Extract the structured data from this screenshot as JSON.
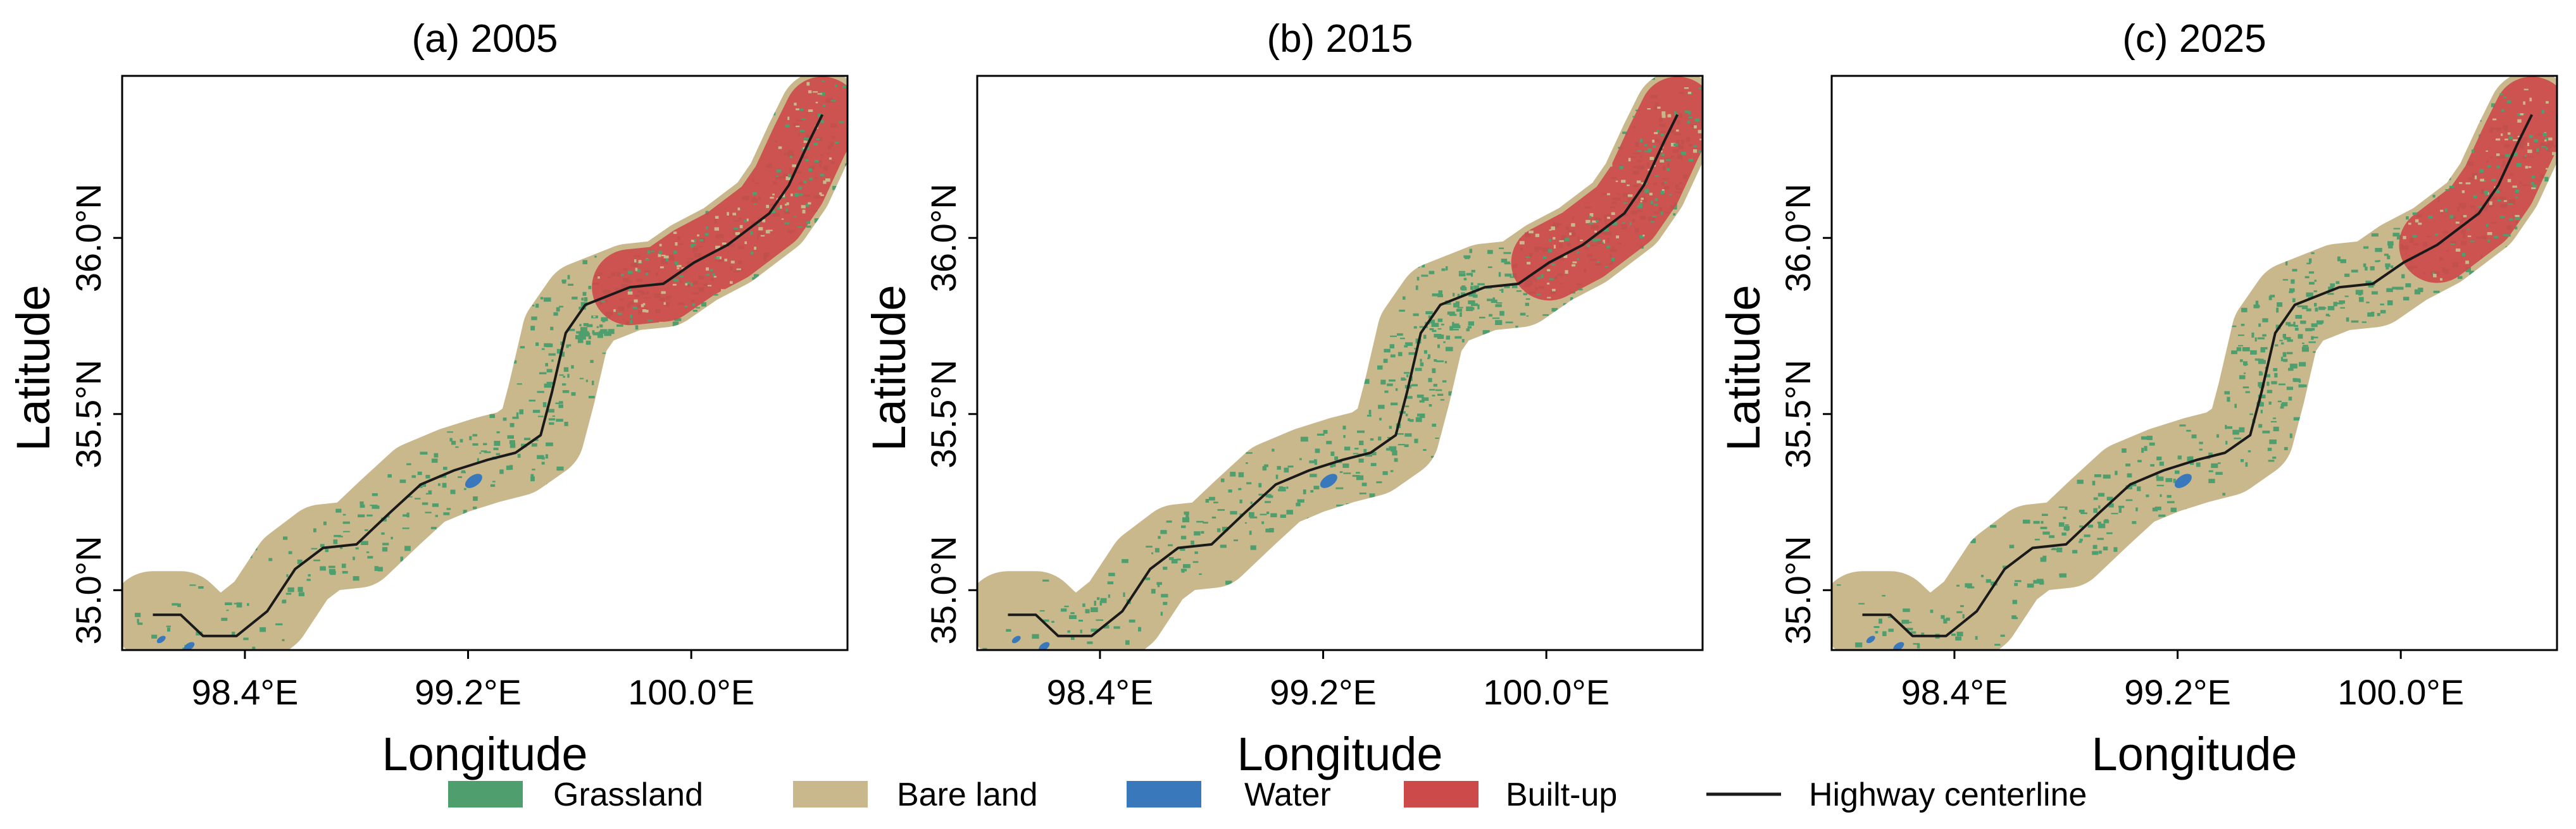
{
  "figure": {
    "xlabel": "Longitude",
    "ylabel": "Latitude",
    "x_ticks": [
      {
        "value": 98.4,
        "label": "98.4°E"
      },
      {
        "value": 99.2,
        "label": "99.2°E"
      },
      {
        "value": 100.0,
        "label": "100.0°E"
      }
    ],
    "y_ticks": [
      {
        "value": 35.0,
        "label": "35.0°N"
      },
      {
        "value": 35.5,
        "label": "35.5°N"
      },
      {
        "value": 36.0,
        "label": "36.0°N"
      }
    ],
    "xlim": [
      97.96,
      100.56
    ],
    "ylim": [
      34.83,
      36.46
    ]
  },
  "panels": [
    {
      "title": "(a) 2005",
      "builtup_extent": 0.32,
      "grassland_density": 0.42
    },
    {
      "title": "(b) 2015",
      "builtup_extent": 0.22,
      "grassland_density": 0.55
    },
    {
      "title": "(c) 2025",
      "builtup_extent": 0.18,
      "grassland_density": 0.5
    }
  ],
  "legend": {
    "placement": "bottom",
    "items": [
      {
        "label": "Grassland",
        "color": "#4e9e6e",
        "kind": "patch"
      },
      {
        "label": "Bare land",
        "color": "#c9b88c",
        "kind": "patch"
      },
      {
        "label": "Water",
        "color": "#3a78bc",
        "kind": "patch"
      },
      {
        "label": "Built-up",
        "color": "#cc4a4a",
        "kind": "patch"
      },
      {
        "label": "Highway centerline",
        "color": "#1a1a1a",
        "kind": "line"
      }
    ]
  },
  "highway_route": [
    [
      98.07,
      34.93
    ],
    [
      98.17,
      34.93
    ],
    [
      98.25,
      34.87
    ],
    [
      98.37,
      34.87
    ],
    [
      98.48,
      34.94
    ],
    [
      98.58,
      35.06
    ],
    [
      98.68,
      35.12
    ],
    [
      98.8,
      35.13
    ],
    [
      98.92,
      35.22
    ],
    [
      99.03,
      35.3
    ],
    [
      99.15,
      35.34
    ],
    [
      99.27,
      35.37
    ],
    [
      99.37,
      35.39
    ],
    [
      99.46,
      35.44
    ],
    [
      99.5,
      35.56
    ],
    [
      99.55,
      35.73
    ],
    [
      99.62,
      35.81
    ],
    [
      99.78,
      35.86
    ],
    [
      99.9,
      35.87
    ],
    [
      100.01,
      35.93
    ],
    [
      100.13,
      35.98
    ],
    [
      100.28,
      36.07
    ],
    [
      100.35,
      36.15
    ],
    [
      100.42,
      36.27
    ],
    [
      100.47,
      36.35
    ]
  ],
  "water_bodies": [
    {
      "lon": 99.22,
      "lat": 35.31,
      "size": 0.035
    },
    {
      "lon": 98.1,
      "lat": 34.86,
      "size": 0.018
    },
    {
      "lon": 98.2,
      "lat": 34.84,
      "size": 0.022
    }
  ]
}
